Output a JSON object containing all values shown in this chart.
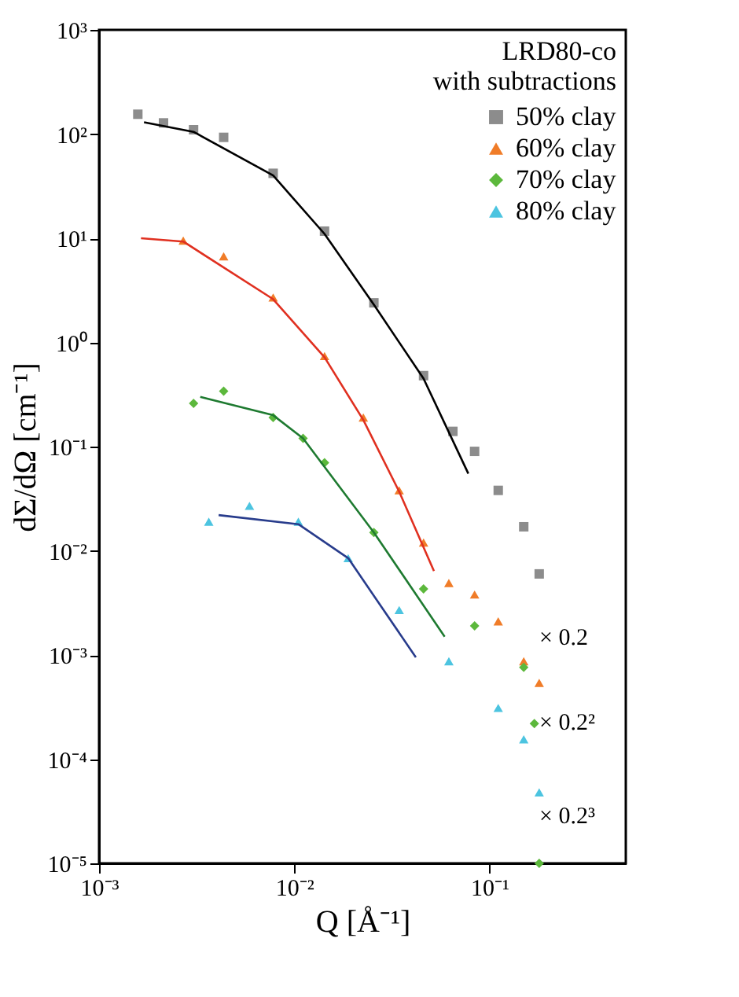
{
  "chart_data": {
    "type": "scatter",
    "xlabel": "Q [Å⁻¹]",
    "ylabel": "dΣ/dΩ [cm⁻¹]",
    "legend_title": "LRD80-co\nwith subtractions",
    "log": "xy",
    "grid": false,
    "legend": "top right",
    "xlim": [
      0.001,
      0.5
    ],
    "xticks": [
      {
        "value": 0.001,
        "label": "10⁻³"
      },
      {
        "value": 0.01,
        "label": "10⁻²"
      },
      {
        "value": 0.1,
        "label": "10⁻¹"
      }
    ],
    "ylim": [
      1e-05,
      1000
    ],
    "yticks": [
      {
        "value": 1e-05,
        "label": "10⁻⁵"
      },
      {
        "value": 0.0001,
        "label": "10⁻⁴"
      },
      {
        "value": 0.001,
        "label": "10⁻³"
      },
      {
        "value": 0.01,
        "label": "10⁻²"
      },
      {
        "value": 0.1,
        "label": "10⁻¹"
      },
      {
        "value": 1,
        "label": "10⁰"
      },
      {
        "value": 10,
        "label": "10¹"
      },
      {
        "value": 100,
        "label": "10²"
      },
      {
        "value": 1000,
        "label": "10³"
      }
    ],
    "series": [
      {
        "name": "50% clay",
        "color": "#8c8c8c",
        "marker": "square",
        "x": [
          0.00158,
          0.00214,
          0.00305,
          0.00435,
          0.0078,
          0.0143,
          0.0256,
          0.046,
          0.065,
          0.084,
          0.111,
          0.15,
          0.18
        ],
        "values": [
          155,
          128,
          110,
          93,
          42,
          11.7,
          2.4,
          0.48,
          0.14,
          0.09,
          0.038,
          0.017,
          0.006
        ]
      },
      {
        "name": "60% clay",
        "color": "#f07c28",
        "marker": "triangle",
        "x": [
          0.0027,
          0.00435,
          0.0078,
          0.0143,
          0.0226,
          0.0345,
          0.046,
          0.062,
          0.084,
          0.111,
          0.15,
          0.18
        ],
        "values": [
          9.5,
          6.7,
          2.7,
          0.74,
          0.19,
          0.038,
          0.012,
          0.0049,
          0.0038,
          0.0021,
          0.00087,
          0.00054
        ]
      },
      {
        "name": "70% clay",
        "color": "#5cb83c",
        "marker": "diamond",
        "x": [
          0.00305,
          0.00435,
          0.0078,
          0.0111,
          0.0143,
          0.0256,
          0.046,
          0.084,
          0.15,
          0.17,
          0.18
        ],
        "values": [
          0.26,
          0.34,
          0.19,
          0.12,
          0.07,
          0.015,
          0.0043,
          0.0019,
          0.00076,
          0.00022,
          1e-05
        ]
      },
      {
        "name": "80% clay",
        "color": "#4cc4e0",
        "marker": "triangle",
        "x": [
          0.00365,
          0.0059,
          0.0105,
          0.0189,
          0.0345,
          0.062,
          0.111,
          0.15,
          0.18
        ],
        "values": [
          0.019,
          0.027,
          0.019,
          0.0085,
          0.0027,
          0.00087,
          0.00031,
          0.000155,
          4.8e-05
        ]
      },
      {
        "type": "line",
        "color": "#000000",
        "x": [
          0.0017,
          0.00305,
          0.0078,
          0.0143,
          0.0256,
          0.046,
          0.078
        ],
        "values": [
          130,
          105,
          40,
          11,
          2.3,
          0.45,
          0.055
        ]
      },
      {
        "type": "line",
        "color": "#e03020",
        "x": [
          0.00164,
          0.0027,
          0.0078,
          0.0143,
          0.0226,
          0.0345,
          0.052
        ],
        "values": [
          10,
          9.3,
          2.6,
          0.72,
          0.18,
          0.037,
          0.0064
        ]
      },
      {
        "type": "line",
        "color": "#1e7a30",
        "x": [
          0.0033,
          0.0078,
          0.0111,
          0.0256,
          0.059
        ],
        "values": [
          0.3,
          0.2,
          0.12,
          0.015,
          0.0015
        ]
      },
      {
        "type": "line",
        "color": "#283c8c",
        "x": [
          0.0041,
          0.0105,
          0.0189,
          0.042
        ],
        "values": [
          0.022,
          0.018,
          0.0085,
          0.00095
        ]
      }
    ],
    "annotations": [
      "× 0.2",
      "× 0.2²",
      "× 0.2³"
    ]
  }
}
